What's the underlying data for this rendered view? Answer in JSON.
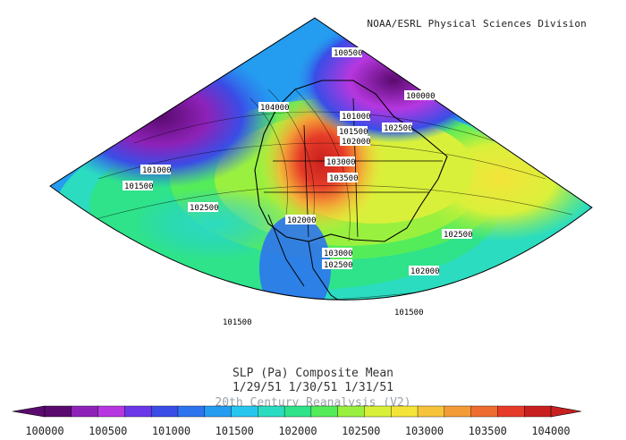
{
  "credit": "NOAA/ESRL Physical Sciences Division",
  "title": "SLP (Pa) Composite Mean",
  "dates": "1/29/51 1/30/51 1/31/51",
  "subtitle": "20th Century Reanalysis (V2)",
  "contour_labels": [
    "100500",
    "100000",
    "104000",
    "101000",
    "101500",
    "102000",
    "102500",
    "103000",
    "103500",
    "101000",
    "101500",
    "102500",
    "102000",
    "103000",
    "102500",
    "102500",
    "102000",
    "101500",
    "101500"
  ],
  "colorbar": {
    "ticks": [
      "100000",
      "100500",
      "101000",
      "101500",
      "102000",
      "102500",
      "103000",
      "103500",
      "104000"
    ],
    "colors": [
      "#5a0a6e",
      "#8e22b8",
      "#b637e0",
      "#6c37e8",
      "#3a4de6",
      "#2e74ee",
      "#249cf0",
      "#27c6ef",
      "#2bdcc0",
      "#2ee38a",
      "#55ec5a",
      "#9af03f",
      "#d9f03a",
      "#f4e43a",
      "#f6c43b",
      "#f39b36",
      "#ee6c2f",
      "#e63b28",
      "#c8201f"
    ]
  }
}
